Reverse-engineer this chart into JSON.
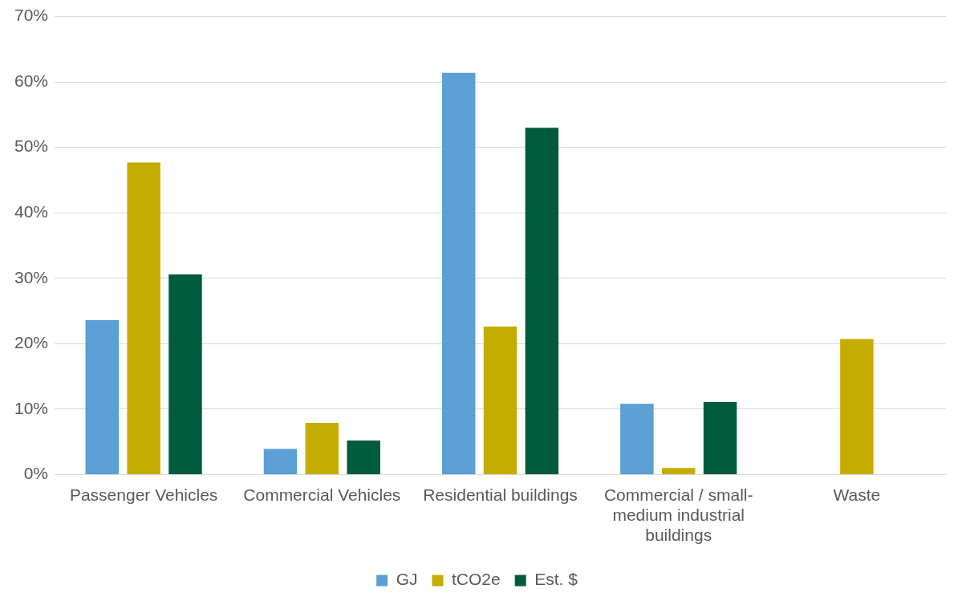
{
  "chart_data": {
    "type": "bar",
    "categories": [
      "Passenger Vehicles",
      "Commercial Vehicles",
      "Residential buildings",
      "Commercial / small-medium industrial buildings",
      "Waste"
    ],
    "series": [
      {
        "name": "GJ",
        "color": "#5b9fd4",
        "values": [
          23.6,
          3.9,
          61.4,
          10.8,
          0
        ]
      },
      {
        "name": "tCO2e",
        "color": "#c4ad00",
        "values": [
          47.7,
          7.9,
          22.6,
          1.0,
          20.7
        ]
      },
      {
        "name": "Est. $",
        "color": "#005c3c",
        "values": [
          30.6,
          5.2,
          53.0,
          11.1,
          0
        ]
      }
    ],
    "ylim": [
      0,
      70
    ],
    "yticks": [
      {
        "value": 0,
        "label": "0%"
      },
      {
        "value": 10,
        "label": "10%"
      },
      {
        "value": 20,
        "label": "20%"
      },
      {
        "value": 30,
        "label": "30%"
      },
      {
        "value": 40,
        "label": "40%"
      },
      {
        "value": 50,
        "label": "50%"
      },
      {
        "value": 60,
        "label": "60%"
      },
      {
        "value": 70,
        "label": "70%"
      }
    ],
    "grid": "y",
    "legend": "bottom"
  }
}
